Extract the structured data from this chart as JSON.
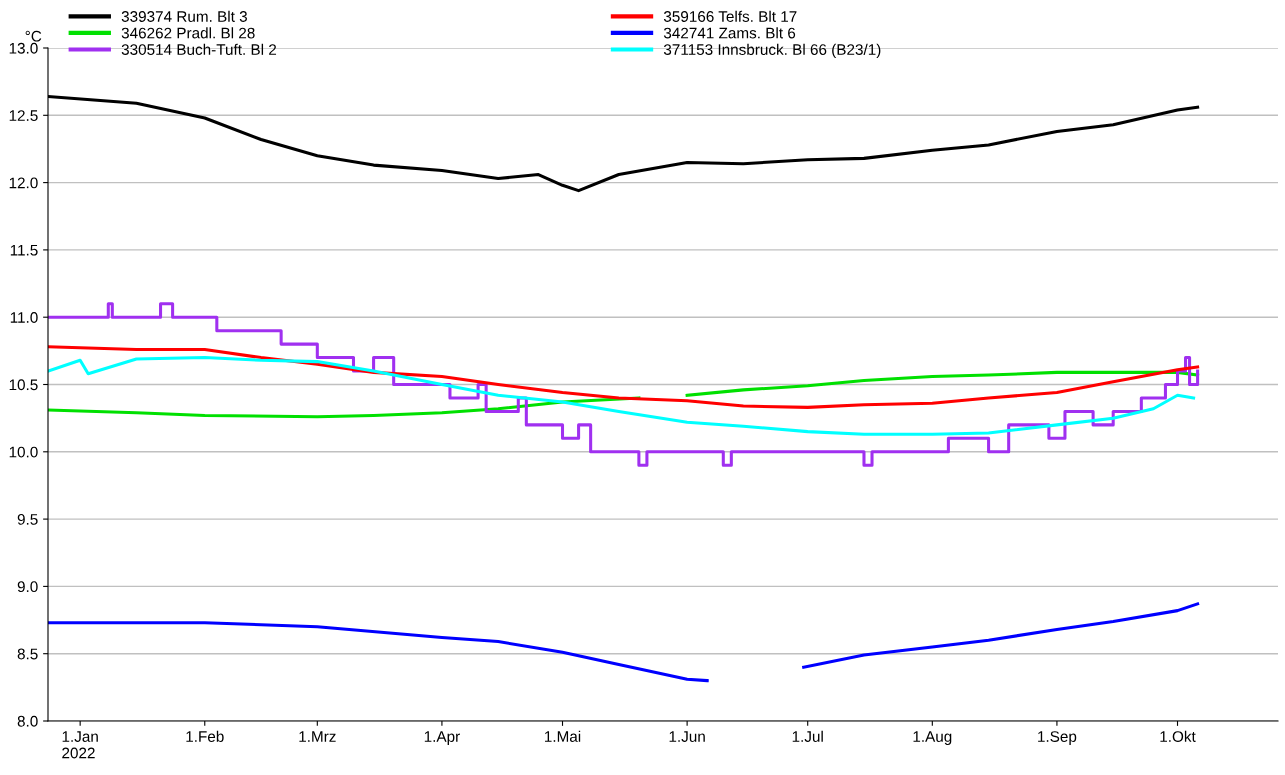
{
  "chart_data": {
    "type": "line",
    "ylabel": "°C",
    "xlim": [
      "2021-12-24",
      "2022-10-26"
    ],
    "ylim": [
      8.0,
      13.0
    ],
    "xticks": [
      {
        "value": "2022-01-01",
        "label": "1.Jan\n2022"
      },
      {
        "value": "2022-02-01",
        "label": "1.Feb"
      },
      {
        "value": "2022-03-01",
        "label": "1.Mrz"
      },
      {
        "value": "2022-04-01",
        "label": "1.Apr"
      },
      {
        "value": "2022-05-01",
        "label": "1.Mai"
      },
      {
        "value": "2022-06-01",
        "label": "1.Jun"
      },
      {
        "value": "2022-07-01",
        "label": "1.Jul"
      },
      {
        "value": "2022-08-01",
        "label": "1.Aug"
      },
      {
        "value": "2022-09-01",
        "label": "1.Sep"
      },
      {
        "value": "2022-10-01",
        "label": "1.Okt"
      }
    ],
    "yticks": [
      {
        "value": 8.0,
        "label": "8.0"
      },
      {
        "value": 8.5,
        "label": "8.5"
      },
      {
        "value": 9.0,
        "label": "9.0"
      },
      {
        "value": 9.5,
        "label": "9.5"
      },
      {
        "value": 10.0,
        "label": "10.0"
      },
      {
        "value": 10.5,
        "label": "10.5"
      },
      {
        "value": 11.0,
        "label": "11.0"
      },
      {
        "value": 11.5,
        "label": "11.5"
      },
      {
        "value": 12.0,
        "label": "12.0"
      },
      {
        "value": 12.5,
        "label": "12.5"
      },
      {
        "value": 13.0,
        "label": "13.0"
      }
    ],
    "grid": "y",
    "legend": "top",
    "marker": "none",
    "line_style": "solid",
    "series": [
      {
        "name": "339374 Rum. Blt 3",
        "color": "#000000",
        "x": [
          "2021-12-24",
          "2022-01-15",
          "2022-02-01",
          "2022-02-15",
          "2022-03-01",
          "2022-03-15",
          "2022-04-01",
          "2022-04-15",
          "2022-04-25",
          "2022-05-01",
          "2022-05-05",
          "2022-05-15",
          "2022-06-01",
          "2022-06-15",
          "2022-07-01",
          "2022-07-15",
          "2022-08-01",
          "2022-08-15",
          "2022-09-01",
          "2022-09-15",
          "2022-10-01",
          "2022-10-06"
        ],
        "values": [
          12.64,
          12.59,
          12.48,
          12.32,
          12.2,
          12.13,
          12.09,
          12.03,
          12.06,
          11.98,
          11.94,
          12.06,
          12.15,
          12.14,
          12.17,
          12.18,
          12.24,
          12.28,
          12.38,
          12.43,
          12.54,
          12.56
        ]
      },
      {
        "name": "346262 Pradl. Bl 28",
        "color": "#00e000",
        "x": [
          "2021-12-24",
          "2022-01-15",
          "2022-02-01",
          "2022-03-01",
          "2022-03-15",
          "2022-04-01",
          "2022-04-15",
          "2022-05-01",
          "2022-05-20",
          "2022-05-26",
          "2022-06-01",
          "2022-06-15",
          "2022-07-01",
          "2022-07-15",
          "2022-08-01",
          "2022-08-15",
          "2022-09-01",
          "2022-09-15",
          "2022-10-01",
          "2022-10-06"
        ],
        "values": [
          10.31,
          10.29,
          10.27,
          10.26,
          10.27,
          10.29,
          10.32,
          10.37,
          10.4,
          null,
          10.42,
          10.46,
          10.49,
          10.53,
          10.56,
          10.57,
          10.59,
          10.59,
          10.59,
          10.57
        ]
      },
      {
        "name": "330514 Buch-Tuft. Bl 2",
        "color": "#a030f0",
        "type": "step",
        "x": [
          "2021-12-24",
          "2022-01-08",
          "2022-01-09",
          "2022-01-10",
          "2022-01-21",
          "2022-01-24",
          "2022-02-04",
          "2022-02-20",
          "2022-03-01",
          "2022-03-10",
          "2022-03-15",
          "2022-03-20",
          "2022-04-03",
          "2022-04-10",
          "2022-04-12",
          "2022-04-20",
          "2022-04-22",
          "2022-05-01",
          "2022-05-05",
          "2022-05-08",
          "2022-05-20",
          "2022-05-22",
          "2022-06-10",
          "2022-06-12",
          "2022-07-15",
          "2022-07-17",
          "2022-08-05",
          "2022-08-15",
          "2022-08-20",
          "2022-08-30",
          "2022-09-03",
          "2022-09-10",
          "2022-09-15",
          "2022-09-22",
          "2022-09-28",
          "2022-10-01",
          "2022-10-03",
          "2022-10-04",
          "2022-10-06"
        ],
        "values": [
          11.0,
          11.1,
          11.0,
          11.0,
          11.1,
          11.0,
          10.9,
          10.8,
          10.7,
          10.6,
          10.7,
          10.5,
          10.4,
          10.5,
          10.3,
          10.4,
          10.2,
          10.1,
          10.2,
          10.0,
          9.9,
          10.0,
          9.9,
          10.0,
          9.9,
          10.0,
          10.1,
          10.0,
          10.2,
          10.1,
          10.3,
          10.2,
          10.3,
          10.4,
          10.5,
          10.6,
          10.7,
          10.5,
          10.6
        ]
      },
      {
        "name": "359166 Telfs. Blt 17",
        "color": "#ff0000",
        "x": [
          "2021-12-24",
          "2022-01-15",
          "2022-02-01",
          "2022-02-15",
          "2022-03-01",
          "2022-03-15",
          "2022-04-01",
          "2022-04-15",
          "2022-05-01",
          "2022-05-15",
          "2022-06-01",
          "2022-06-15",
          "2022-07-01",
          "2022-07-15",
          "2022-08-01",
          "2022-08-15",
          "2022-09-01",
          "2022-09-15",
          "2022-10-01",
          "2022-10-06"
        ],
        "values": [
          10.78,
          10.76,
          10.76,
          10.7,
          10.65,
          10.59,
          10.56,
          10.5,
          10.44,
          10.4,
          10.38,
          10.34,
          10.33,
          10.35,
          10.36,
          10.4,
          10.44,
          10.52,
          10.61,
          10.63
        ]
      },
      {
        "name": "342741 Zams. Blt 6",
        "color": "#0000ff",
        "x": [
          "2021-12-24",
          "2022-02-01",
          "2022-03-01",
          "2022-04-01",
          "2022-04-15",
          "2022-05-01",
          "2022-05-15",
          "2022-06-01",
          "2022-06-06",
          "2022-06-18",
          "2022-06-30",
          "2022-07-15",
          "2022-08-01",
          "2022-08-15",
          "2022-09-01",
          "2022-09-15",
          "2022-10-01",
          "2022-10-06"
        ],
        "values": [
          8.73,
          8.73,
          8.7,
          8.62,
          8.59,
          8.51,
          8.42,
          8.31,
          8.3,
          null,
          8.4,
          8.49,
          8.55,
          8.6,
          8.68,
          8.74,
          8.82,
          8.87
        ]
      },
      {
        "name": "371153 Innsbruck. Bl 66 (B23/1)",
        "color": "#00ffff",
        "x": [
          "2021-12-24",
          "2022-01-01",
          "2022-01-03",
          "2022-01-15",
          "2022-02-01",
          "2022-02-15",
          "2022-03-01",
          "2022-03-15",
          "2022-04-01",
          "2022-04-15",
          "2022-05-01",
          "2022-05-15",
          "2022-06-01",
          "2022-06-15",
          "2022-07-01",
          "2022-07-15",
          "2022-08-01",
          "2022-08-15",
          "2022-09-01",
          "2022-09-15",
          "2022-09-25",
          "2022-10-01",
          "2022-10-05"
        ],
        "values": [
          10.6,
          10.68,
          10.58,
          10.69,
          10.7,
          10.68,
          10.67,
          10.6,
          10.5,
          10.42,
          10.37,
          10.3,
          10.22,
          10.19,
          10.15,
          10.13,
          10.13,
          10.14,
          10.2,
          10.25,
          10.32,
          10.42,
          10.4
        ]
      }
    ]
  }
}
